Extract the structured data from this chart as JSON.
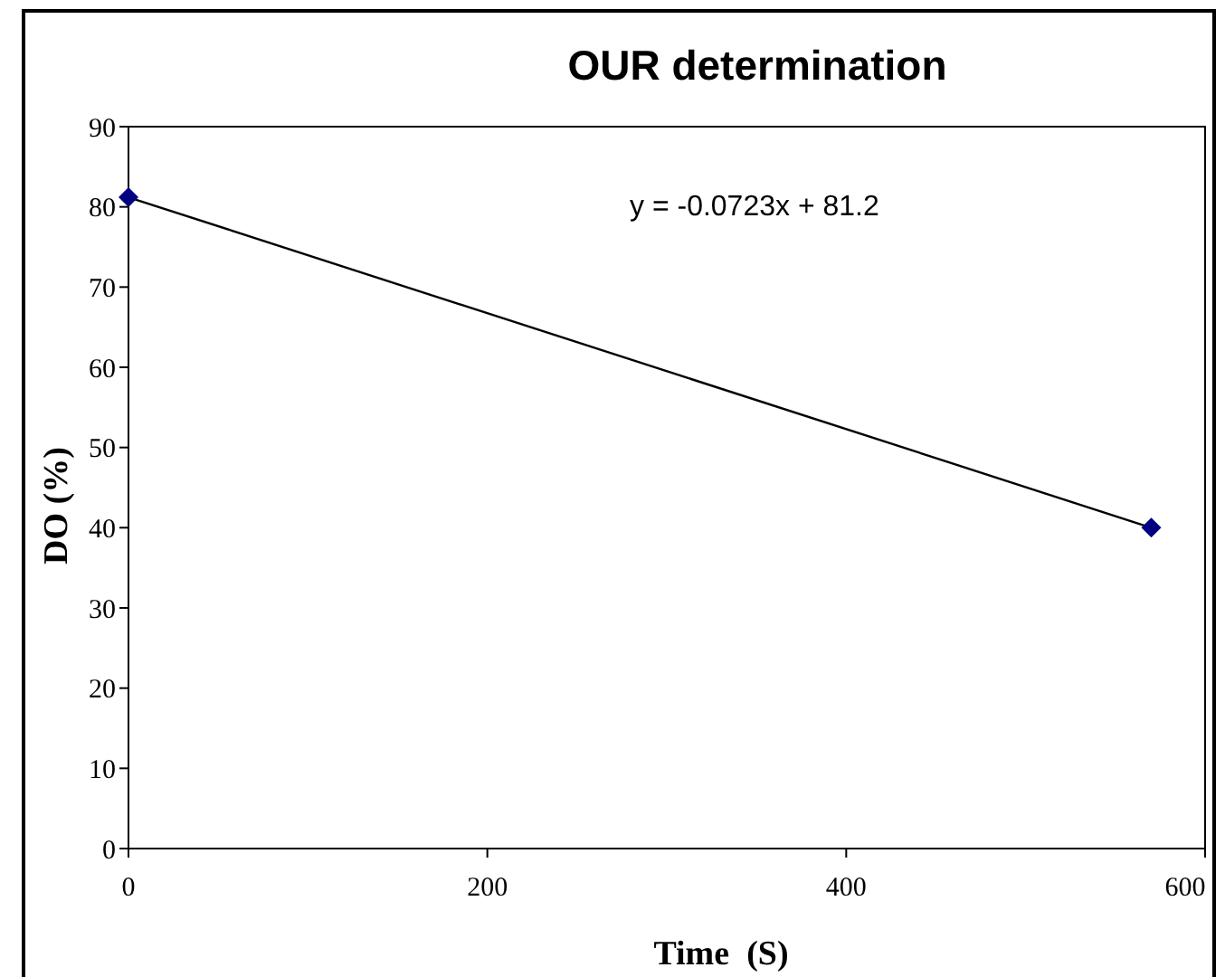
{
  "chart_data": {
    "type": "line",
    "title": "OUR determination",
    "xlabel": "Time  (S)",
    "ylabel": "DO (%)",
    "xlim": [
      0,
      600
    ],
    "xticks": [
      0,
      200,
      400,
      600
    ],
    "ylim": [
      0,
      90
    ],
    "yticks": [
      0,
      10,
      20,
      30,
      40,
      50,
      60,
      70,
      80,
      90
    ],
    "grid": false,
    "marker": "diamond",
    "line_style": "solid",
    "annotations": [
      "y = -0.0723x + 81.2"
    ],
    "x": [
      0,
      570
    ],
    "series": [
      {
        "color": "#000080",
        "values": [
          81.2,
          40.0
        ]
      }
    ]
  }
}
